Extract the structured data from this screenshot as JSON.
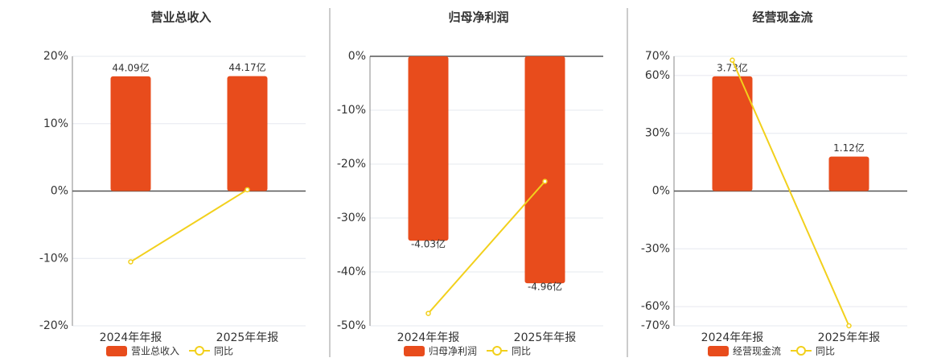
{
  "chart_data": [
    {
      "type": "bar",
      "title": "营业总收入",
      "categories": [
        "2024年年报",
        "2025年年报"
      ],
      "series": [
        {
          "name": "营业总收入",
          "type": "bar",
          "axis": "y2",
          "color": "#e84c1c",
          "values": [
            44.09,
            44.17
          ],
          "value_labels": [
            "44.09亿",
            "44.17亿"
          ]
        },
        {
          "name": "同比",
          "type": "line",
          "color": "#f2d01c",
          "values": [
            -10.5,
            0.2
          ]
        }
      ],
      "ylim": [
        -20,
        20
      ],
      "yticks": [
        {
          "value": -20,
          "label": "-20%"
        },
        {
          "value": -10,
          "label": "-10%"
        },
        {
          "value": 0,
          "label": "0%"
        },
        {
          "value": 10,
          "label": "10%"
        },
        {
          "value": 20,
          "label": "20%"
        }
      ],
      "y2lim": [
        -51.8,
        51.8
      ],
      "grid": true
    },
    {
      "type": "bar",
      "title": "归母净利润",
      "categories": [
        "2024年年报",
        "2025年年报"
      ],
      "series": [
        {
          "name": "归母净利润",
          "type": "bar",
          "axis": "y2",
          "color": "#e84c1c",
          "values": [
            -4.03,
            -4.96
          ],
          "value_labels": [
            "-4.03亿",
            "-4.96亿"
          ]
        },
        {
          "name": "同比",
          "type": "line",
          "color": "#f2d01c",
          "values": [
            -47.7,
            -23.2
          ]
        }
      ],
      "ylim": [
        -50,
        0
      ],
      "yticks": [
        {
          "value": -50,
          "label": "-50%"
        },
        {
          "value": -40,
          "label": "-40%"
        },
        {
          "value": -30,
          "label": "-30%"
        },
        {
          "value": -20,
          "label": "-20%"
        },
        {
          "value": -10,
          "label": "-10%"
        },
        {
          "value": 0,
          "label": "0%"
        }
      ],
      "y2lim": [
        -5.89,
        0
      ],
      "grid": true
    },
    {
      "type": "bar",
      "title": "经营现金流",
      "categories": [
        "2024年年报",
        "2025年年报"
      ],
      "series": [
        {
          "name": "经营现金流",
          "type": "bar",
          "axis": "y2",
          "color": "#e84c1c",
          "values": [
            3.73,
            1.12
          ],
          "value_labels": [
            "3.73亿",
            "1.12亿"
          ]
        },
        {
          "name": "同比",
          "type": "line",
          "color": "#f2d01c",
          "values": [
            68,
            -70
          ]
        }
      ],
      "ylim": [
        -70,
        70
      ],
      "yticks": [
        {
          "value": -70,
          "label": "-70%"
        },
        {
          "value": -60,
          "label": "-60%"
        },
        {
          "value": -30,
          "label": "-30%"
        },
        {
          "value": 0,
          "label": "0%"
        },
        {
          "value": 30,
          "label": "30%"
        },
        {
          "value": 60,
          "label": "60%"
        },
        {
          "value": 70,
          "label": "70%"
        }
      ],
      "y2lim": [
        -4.38,
        4.38
      ],
      "grid": true
    }
  ]
}
